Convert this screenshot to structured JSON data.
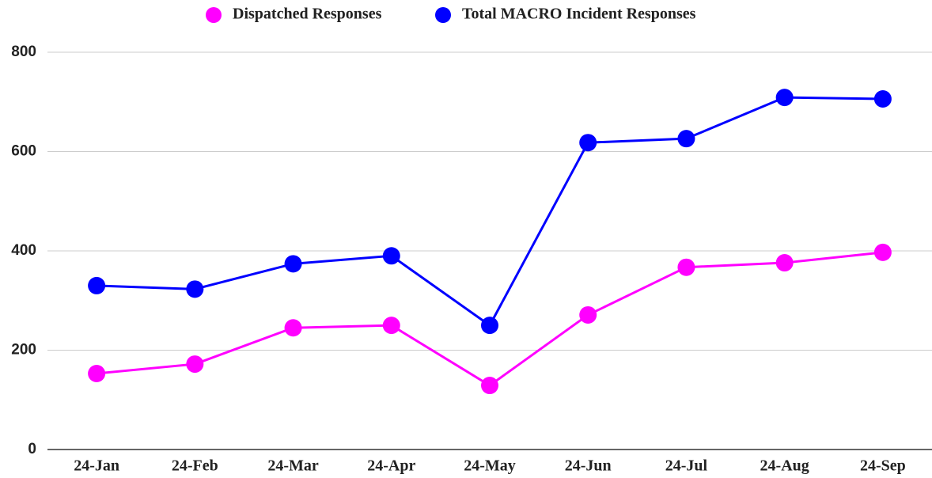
{
  "chart_data": {
    "type": "line",
    "categories": [
      "24-Jan",
      "24-Feb",
      "24-Mar",
      "24-Apr",
      "24-May",
      "24-Jun",
      "24-Jul",
      "24-Aug",
      "24-Sep"
    ],
    "series": [
      {
        "name": "Dispatched Responses",
        "color": "#ff00ff",
        "values": [
          153,
          172,
          245,
          250,
          129,
          271,
          367,
          376,
          397
        ]
      },
      {
        "name": "Total MACRO Incident Responses",
        "color": "#0000ff",
        "values": [
          330,
          323,
          374,
          390,
          250,
          618,
          626,
          709,
          706
        ]
      }
    ],
    "ylim": [
      0,
      800
    ],
    "yticks": [
      0,
      200,
      400,
      600,
      800
    ],
    "grid": true,
    "legend": "top"
  }
}
